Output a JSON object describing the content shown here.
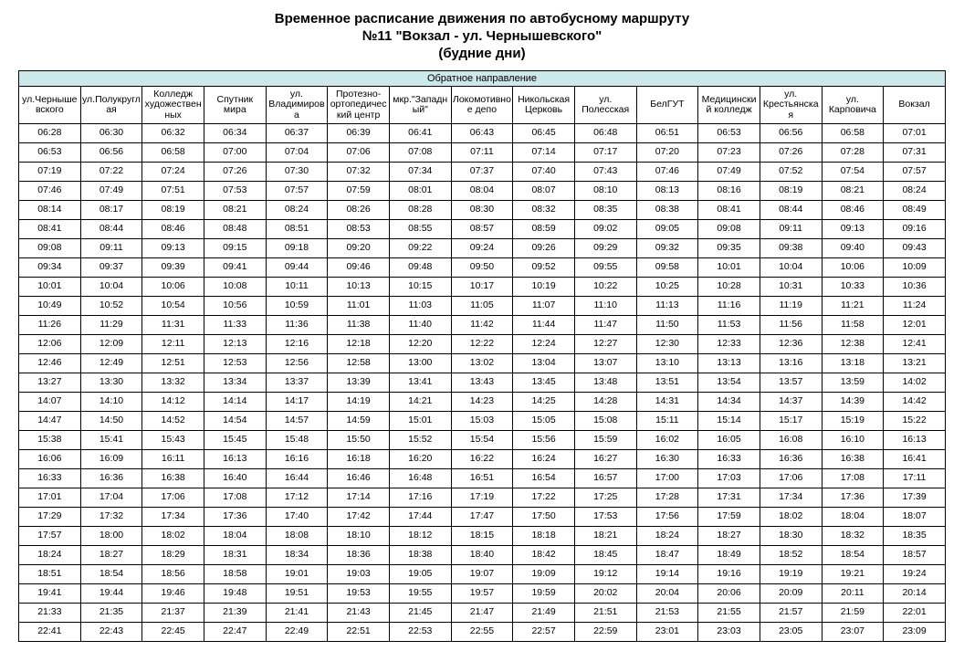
{
  "title_lines": [
    "Временное расписание движения по автобусному маршруту",
    "№11 \"Вокзал - ул. Чернышевского\"",
    "(будние дни)"
  ],
  "direction_label": "Обратное направление",
  "headers": [
    "ул.Чернышевского",
    "ул.Полукруглая",
    "Колледж художественных",
    "Спутник мира",
    "ул. Владимирова",
    "Протезно-ортопедический центр",
    "мкр.\"Западный\"",
    "Локомотивное депо",
    "Никольская Церковь",
    "ул. Полесская",
    "БелГУТ",
    "Медицинский колледж",
    "ул. Крестьянская",
    "ул. Карповича",
    "Вокзал"
  ],
  "rows": [
    [
      "06:28",
      "06:30",
      "06:32",
      "06:34",
      "06:37",
      "06:39",
      "06:41",
      "06:43",
      "06:45",
      "06:48",
      "06:51",
      "06:53",
      "06:56",
      "06:58",
      "07:01"
    ],
    [
      "06:53",
      "06:56",
      "06:58",
      "07:00",
      "07:04",
      "07:06",
      "07:08",
      "07:11",
      "07:14",
      "07:17",
      "07:20",
      "07:23",
      "07:26",
      "07:28",
      "07:31"
    ],
    [
      "07:19",
      "07:22",
      "07:24",
      "07:26",
      "07:30",
      "07:32",
      "07:34",
      "07:37",
      "07:40",
      "07:43",
      "07:46",
      "07:49",
      "07:52",
      "07:54",
      "07:57"
    ],
    [
      "07:46",
      "07:49",
      "07:51",
      "07:53",
      "07:57",
      "07:59",
      "08:01",
      "08:04",
      "08:07",
      "08:10",
      "08:13",
      "08:16",
      "08:19",
      "08:21",
      "08:24"
    ],
    [
      "08:14",
      "08:17",
      "08:19",
      "08:21",
      "08:24",
      "08:26",
      "08:28",
      "08:30",
      "08:32",
      "08:35",
      "08:38",
      "08:41",
      "08:44",
      "08:46",
      "08:49"
    ],
    [
      "08:41",
      "08:44",
      "08:46",
      "08:48",
      "08:51",
      "08:53",
      "08:55",
      "08:57",
      "08:59",
      "09:02",
      "09:05",
      "09:08",
      "09:11",
      "09:13",
      "09:16"
    ],
    [
      "09:08",
      "09:11",
      "09:13",
      "09:15",
      "09:18",
      "09:20",
      "09:22",
      "09:24",
      "09:26",
      "09:29",
      "09:32",
      "09:35",
      "09:38",
      "09:40",
      "09:43"
    ],
    [
      "09:34",
      "09:37",
      "09:39",
      "09:41",
      "09:44",
      "09:46",
      "09:48",
      "09:50",
      "09:52",
      "09:55",
      "09:58",
      "10:01",
      "10:04",
      "10:06",
      "10:09"
    ],
    [
      "10:01",
      "10:04",
      "10:06",
      "10:08",
      "10:11",
      "10:13",
      "10:15",
      "10:17",
      "10:19",
      "10:22",
      "10:25",
      "10:28",
      "10:31",
      "10:33",
      "10:36"
    ],
    [
      "10:49",
      "10:52",
      "10:54",
      "10:56",
      "10:59",
      "11:01",
      "11:03",
      "11:05",
      "11:07",
      "11:10",
      "11:13",
      "11:16",
      "11:19",
      "11:21",
      "11:24"
    ],
    [
      "11:26",
      "11:29",
      "11:31",
      "11:33",
      "11:36",
      "11:38",
      "11:40",
      "11:42",
      "11:44",
      "11:47",
      "11:50",
      "11:53",
      "11:56",
      "11:58",
      "12:01"
    ],
    [
      "12:06",
      "12:09",
      "12:11",
      "12:13",
      "12:16",
      "12:18",
      "12:20",
      "12:22",
      "12:24",
      "12:27",
      "12:30",
      "12:33",
      "12:36",
      "12:38",
      "12:41"
    ],
    [
      "12:46",
      "12:49",
      "12:51",
      "12:53",
      "12:56",
      "12:58",
      "13:00",
      "13:02",
      "13:04",
      "13:07",
      "13:10",
      "13:13",
      "13:16",
      "13:18",
      "13:21"
    ],
    [
      "13:27",
      "13:30",
      "13:32",
      "13:34",
      "13:37",
      "13:39",
      "13:41",
      "13:43",
      "13:45",
      "13:48",
      "13:51",
      "13:54",
      "13:57",
      "13:59",
      "14:02"
    ],
    [
      "14:07",
      "14:10",
      "14:12",
      "14:14",
      "14:17",
      "14:19",
      "14:21",
      "14:23",
      "14:25",
      "14:28",
      "14:31",
      "14:34",
      "14:37",
      "14:39",
      "14:42"
    ],
    [
      "14:47",
      "14:50",
      "14:52",
      "14:54",
      "14:57",
      "14:59",
      "15:01",
      "15:03",
      "15:05",
      "15:08",
      "15:11",
      "15:14",
      "15:17",
      "15:19",
      "15:22"
    ],
    [
      "15:38",
      "15:41",
      "15:43",
      "15:45",
      "15:48",
      "15:50",
      "15:52",
      "15:54",
      "15:56",
      "15:59",
      "16:02",
      "16:05",
      "16:08",
      "16:10",
      "16:13"
    ],
    [
      "16:06",
      "16:09",
      "16:11",
      "16:13",
      "16:16",
      "16:18",
      "16:20",
      "16:22",
      "16:24",
      "16:27",
      "16:30",
      "16:33",
      "16:36",
      "16:38",
      "16:41"
    ],
    [
      "16:33",
      "16:36",
      "16:38",
      "16:40",
      "16:44",
      "16:46",
      "16:48",
      "16:51",
      "16:54",
      "16:57",
      "17:00",
      "17:03",
      "17:06",
      "17:08",
      "17:11"
    ],
    [
      "17:01",
      "17:04",
      "17:06",
      "17:08",
      "17:12",
      "17:14",
      "17:16",
      "17:19",
      "17:22",
      "17:25",
      "17:28",
      "17:31",
      "17:34",
      "17:36",
      "17:39"
    ],
    [
      "17:29",
      "17:32",
      "17:34",
      "17:36",
      "17:40",
      "17:42",
      "17:44",
      "17:47",
      "17:50",
      "17:53",
      "17:56",
      "17:59",
      "18:02",
      "18:04",
      "18:07"
    ],
    [
      "17:57",
      "18:00",
      "18:02",
      "18:04",
      "18:08",
      "18:10",
      "18:12",
      "18:15",
      "18:18",
      "18:21",
      "18:24",
      "18:27",
      "18:30",
      "18:32",
      "18:35"
    ],
    [
      "18:24",
      "18:27",
      "18:29",
      "18:31",
      "18:34",
      "18:36",
      "18:38",
      "18:40",
      "18:42",
      "18:45",
      "18:47",
      "18:49",
      "18:52",
      "18:54",
      "18:57"
    ],
    [
      "18:51",
      "18:54",
      "18:56",
      "18:58",
      "19:01",
      "19:03",
      "19:05",
      "19:07",
      "19:09",
      "19:12",
      "19:14",
      "19:16",
      "19:19",
      "19:21",
      "19:24"
    ],
    [
      "19:41",
      "19:44",
      "19:46",
      "19:48",
      "19:51",
      "19:53",
      "19:55",
      "19:57",
      "19:59",
      "20:02",
      "20:04",
      "20:06",
      "20:09",
      "20:11",
      "20:14"
    ],
    [
      "21:33",
      "21:35",
      "21:37",
      "21:39",
      "21:41",
      "21:43",
      "21:45",
      "21:47",
      "21:49",
      "21:51",
      "21:53",
      "21:55",
      "21:57",
      "21:59",
      "22:01"
    ],
    [
      "22:41",
      "22:43",
      "22:45",
      "22:47",
      "22:49",
      "22:51",
      "22:53",
      "22:55",
      "22:57",
      "22:59",
      "23:01",
      "23:03",
      "23:05",
      "23:07",
      "23:09"
    ]
  ]
}
